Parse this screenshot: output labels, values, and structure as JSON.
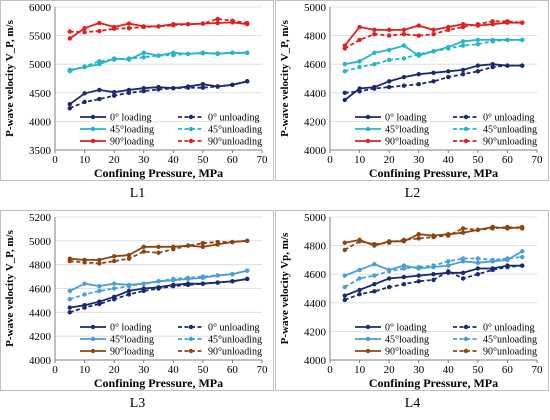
{
  "legend": {
    "l0": "0°  loading",
    "u0": "0°  unloading",
    "l45": "45°loading",
    "u45": "45°unloading",
    "l90": "90°loading",
    "u90": "90°unloading"
  },
  "colors": {
    "deg0": "#1a2a6c",
    "deg45": "#25b4c8",
    "deg45b": "#4a9fd8",
    "deg90": "#e02020",
    "deg90b": "#8b4513"
  },
  "chart_data": [
    {
      "type": "line",
      "caption": "L1",
      "xlabel": "Confining Pressure, MPa",
      "ylabel": "P-wave velocity V_P,  m/s",
      "xlim": [
        0,
        70
      ],
      "ylim": [
        3500,
        6000
      ],
      "xticks": [
        0,
        10,
        20,
        30,
        40,
        50,
        60,
        70
      ],
      "yticks": [
        3500,
        4000,
        4500,
        5000,
        5500,
        6000
      ],
      "series": [
        {
          "key": "l0",
          "color": "deg0",
          "dash": false,
          "x": [
            5,
            10,
            15,
            20,
            25,
            30,
            35,
            40,
            45,
            50,
            55,
            60,
            65
          ],
          "y": [
            4300,
            4490,
            4550,
            4510,
            4550,
            4580,
            4600,
            4580,
            4610,
            4650,
            4610,
            4640,
            4700
          ]
        },
        {
          "key": "u0",
          "color": "deg0",
          "dash": true,
          "x": [
            5,
            10,
            15,
            20,
            25,
            30,
            35,
            40,
            45,
            50,
            55,
            60,
            65
          ],
          "y": [
            4230,
            4340,
            4390,
            4450,
            4500,
            4530,
            4560,
            4580,
            4590,
            4590,
            4610,
            4640,
            4700
          ]
        },
        {
          "key": "l45",
          "color": "deg45",
          "dash": false,
          "x": [
            5,
            10,
            15,
            20,
            25,
            30,
            35,
            40,
            45,
            50,
            55,
            60,
            65
          ],
          "y": [
            4900,
            4950,
            5000,
            5100,
            5080,
            5200,
            5150,
            5200,
            5180,
            5200,
            5180,
            5200,
            5200
          ]
        },
        {
          "key": "u45",
          "color": "deg45",
          "dash": true,
          "x": [
            5,
            10,
            15,
            20,
            25,
            30,
            35,
            40,
            45,
            50,
            55,
            60,
            65
          ],
          "y": [
            4880,
            4960,
            5050,
            5080,
            5100,
            5120,
            5150,
            5160,
            5180,
            5190,
            5190,
            5200,
            5200
          ]
        },
        {
          "key": "l90",
          "color": "deg90",
          "dash": false,
          "x": [
            5,
            10,
            15,
            20,
            25,
            30,
            35,
            40,
            45,
            50,
            55,
            60,
            65
          ],
          "y": [
            5450,
            5630,
            5720,
            5650,
            5710,
            5660,
            5660,
            5700,
            5700,
            5710,
            5720,
            5730,
            5700
          ]
        },
        {
          "key": "u90",
          "color": "deg90",
          "dash": true,
          "x": [
            5,
            10,
            15,
            20,
            25,
            30,
            35,
            40,
            45,
            50,
            55,
            60,
            65
          ],
          "y": [
            5570,
            5560,
            5580,
            5620,
            5630,
            5650,
            5660,
            5680,
            5700,
            5710,
            5790,
            5760,
            5720
          ]
        }
      ]
    },
    {
      "type": "line",
      "caption": "L2",
      "xlabel": "Confining Pressure, MPa",
      "ylabel": "P-wave velocity V_P,  m/s",
      "xlim": [
        0,
        70
      ],
      "ylim": [
        4000,
        5000
      ],
      "xticks": [
        0,
        10,
        20,
        30,
        40,
        50,
        60,
        70
      ],
      "yticks": [
        4000,
        4200,
        4400,
        4600,
        4800,
        5000
      ],
      "series": [
        {
          "key": "l0",
          "color": "deg0",
          "dash": false,
          "x": [
            5,
            10,
            15,
            20,
            25,
            30,
            35,
            40,
            45,
            50,
            55,
            60,
            65
          ],
          "y": [
            4350,
            4430,
            4440,
            4480,
            4510,
            4530,
            4540,
            4550,
            4560,
            4590,
            4600,
            4590,
            4590
          ]
        },
        {
          "key": "u0",
          "color": "deg0",
          "dash": true,
          "x": [
            5,
            10,
            15,
            20,
            25,
            30,
            35,
            40,
            45,
            50,
            55,
            60,
            65
          ],
          "y": [
            4400,
            4410,
            4430,
            4440,
            4450,
            4460,
            4480,
            4510,
            4530,
            4550,
            4580,
            4590,
            4590
          ]
        },
        {
          "key": "l45",
          "color": "deg45",
          "dash": false,
          "x": [
            5,
            10,
            15,
            20,
            25,
            30,
            35,
            40,
            45,
            50,
            55,
            60,
            65
          ],
          "y": [
            4600,
            4620,
            4680,
            4700,
            4730,
            4660,
            4690,
            4720,
            4760,
            4770,
            4770,
            4770,
            4770
          ]
        },
        {
          "key": "u45",
          "color": "deg45",
          "dash": true,
          "x": [
            5,
            10,
            15,
            20,
            25,
            30,
            35,
            40,
            45,
            50,
            55,
            60,
            65
          ],
          "y": [
            4550,
            4580,
            4600,
            4630,
            4640,
            4670,
            4690,
            4710,
            4730,
            4740,
            4760,
            4770,
            4770
          ]
        },
        {
          "key": "l90",
          "color": "deg90",
          "dash": false,
          "x": [
            5,
            10,
            15,
            20,
            25,
            30,
            35,
            40,
            45,
            50,
            55,
            60,
            65
          ],
          "y": [
            4730,
            4860,
            4840,
            4840,
            4840,
            4870,
            4840,
            4860,
            4880,
            4870,
            4880,
            4890,
            4890
          ]
        },
        {
          "key": "u90",
          "color": "deg90",
          "dash": true,
          "x": [
            5,
            10,
            15,
            20,
            25,
            30,
            35,
            40,
            45,
            50,
            55,
            60,
            65
          ],
          "y": [
            4710,
            4770,
            4810,
            4800,
            4810,
            4800,
            4810,
            4840,
            4860,
            4880,
            4900,
            4900,
            4890
          ]
        }
      ]
    },
    {
      "type": "line",
      "caption": "L3",
      "xlabel": "Confining Pressure, MPa",
      "ylabel": "P-wave velocity V_P,  m/s",
      "xlim": [
        0,
        70
      ],
      "ylim": [
        4000,
        5200
      ],
      "xticks": [
        0,
        10,
        20,
        30,
        40,
        50,
        60,
        70
      ],
      "yticks": [
        4000,
        4200,
        4400,
        4600,
        4800,
        5000,
        5200
      ],
      "series": [
        {
          "key": "l0",
          "color": "deg0",
          "dash": false,
          "x": [
            5,
            10,
            15,
            20,
            25,
            30,
            35,
            40,
            45,
            50,
            55,
            60,
            65
          ],
          "y": [
            4440,
            4460,
            4490,
            4530,
            4580,
            4600,
            4610,
            4630,
            4640,
            4640,
            4650,
            4660,
            4680
          ]
        },
        {
          "key": "u0",
          "color": "deg0",
          "dash": true,
          "x": [
            5,
            10,
            15,
            20,
            25,
            30,
            35,
            40,
            45,
            50,
            55,
            60,
            65
          ],
          "y": [
            4400,
            4440,
            4470,
            4510,
            4550,
            4580,
            4600,
            4620,
            4630,
            4640,
            4650,
            4660,
            4680
          ]
        },
        {
          "key": "l45",
          "color": "deg45b",
          "dash": false,
          "x": [
            5,
            10,
            15,
            20,
            25,
            30,
            35,
            40,
            45,
            50,
            55,
            60,
            65
          ],
          "y": [
            4580,
            4640,
            4620,
            4640,
            4630,
            4640,
            4660,
            4670,
            4680,
            4690,
            4710,
            4720,
            4750
          ]
        },
        {
          "key": "u45",
          "color": "deg45b",
          "dash": true,
          "x": [
            5,
            10,
            15,
            20,
            25,
            30,
            35,
            40,
            45,
            50,
            55,
            60,
            65
          ],
          "y": [
            4510,
            4550,
            4580,
            4600,
            4620,
            4640,
            4660,
            4680,
            4690,
            4700,
            4710,
            4720,
            4750
          ]
        },
        {
          "key": "l90",
          "color": "deg90b",
          "dash": false,
          "x": [
            5,
            10,
            15,
            20,
            25,
            30,
            35,
            40,
            45,
            50,
            55,
            60,
            65
          ],
          "y": [
            4850,
            4840,
            4840,
            4870,
            4880,
            4950,
            4950,
            4950,
            4960,
            4950,
            4970,
            4990,
            5000
          ]
        },
        {
          "key": "u90",
          "color": "deg90b",
          "dash": true,
          "x": [
            5,
            10,
            15,
            20,
            25,
            30,
            35,
            40,
            45,
            50,
            55,
            60,
            65
          ],
          "y": [
            4830,
            4820,
            4810,
            4830,
            4850,
            4910,
            4900,
            4930,
            4960,
            4980,
            4990,
            4990,
            5000
          ]
        }
      ]
    },
    {
      "type": "line",
      "caption": "L4",
      "xlabel": "Confining Pressure, MPa",
      "ylabel": "P-wave velocity Vp,  m/s",
      "xlim": [
        0,
        70
      ],
      "ylim": [
        4000,
        5000
      ],
      "xticks": [
        0,
        10,
        20,
        30,
        40,
        50,
        60,
        70
      ],
      "yticks": [
        4000,
        4200,
        4400,
        4600,
        4800,
        5000
      ],
      "series": [
        {
          "key": "l0",
          "color": "deg0",
          "dash": false,
          "x": [
            5,
            10,
            15,
            20,
            25,
            30,
            35,
            40,
            45,
            50,
            55,
            60,
            65
          ],
          "y": [
            4450,
            4490,
            4530,
            4570,
            4580,
            4590,
            4600,
            4610,
            4610,
            4640,
            4640,
            4660,
            4660
          ]
        },
        {
          "key": "u0",
          "color": "deg0",
          "dash": true,
          "x": [
            5,
            10,
            15,
            20,
            25,
            30,
            35,
            40,
            45,
            50,
            55,
            60,
            65
          ],
          "y": [
            4420,
            4460,
            4480,
            4510,
            4530,
            4550,
            4560,
            4620,
            4570,
            4600,
            4630,
            4650,
            4660
          ]
        },
        {
          "key": "l45",
          "color": "deg45b",
          "dash": false,
          "x": [
            5,
            10,
            15,
            20,
            25,
            30,
            35,
            40,
            45,
            50,
            55,
            60,
            65
          ],
          "y": [
            4590,
            4630,
            4670,
            4630,
            4660,
            4640,
            4650,
            4660,
            4690,
            4680,
            4690,
            4700,
            4760
          ]
        },
        {
          "key": "u45",
          "color": "deg45b",
          "dash": true,
          "x": [
            5,
            10,
            15,
            20,
            25,
            30,
            35,
            40,
            45,
            50,
            55,
            60,
            65
          ],
          "y": [
            4510,
            4570,
            4590,
            4620,
            4640,
            4650,
            4660,
            4690,
            4710,
            4710,
            4700,
            4710,
            4720
          ]
        },
        {
          "key": "l90",
          "color": "deg90b",
          "dash": false,
          "x": [
            5,
            10,
            15,
            20,
            25,
            30,
            35,
            40,
            45,
            50,
            55,
            60,
            65
          ],
          "y": [
            4820,
            4840,
            4800,
            4830,
            4830,
            4880,
            4870,
            4880,
            4890,
            4910,
            4930,
            4920,
            4930
          ]
        },
        {
          "key": "u90",
          "color": "deg90b",
          "dash": true,
          "x": [
            5,
            10,
            15,
            20,
            25,
            30,
            35,
            40,
            45,
            50,
            55,
            60,
            65
          ],
          "y": [
            4770,
            4830,
            4810,
            4820,
            4840,
            4850,
            4860,
            4870,
            4920,
            4910,
            4920,
            4930,
            4920
          ]
        }
      ]
    }
  ]
}
